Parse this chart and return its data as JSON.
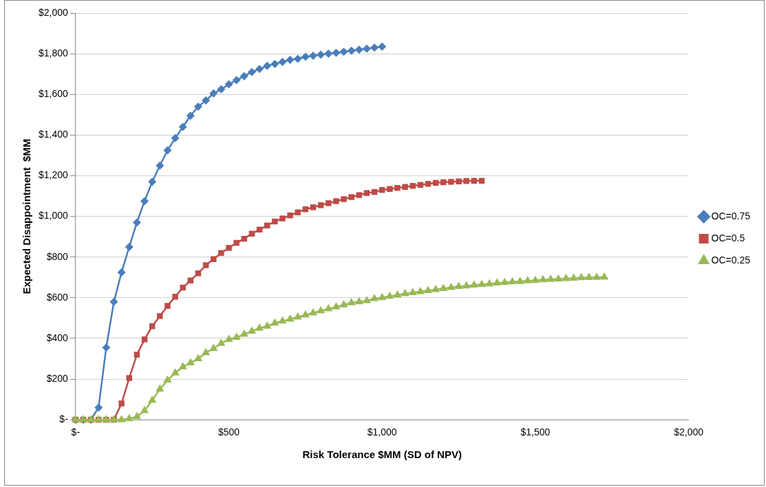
{
  "chart_data": {
    "type": "line",
    "xlabel": "Risk Tolerance $MM (SD of NPV)",
    "ylabel": "Expected Disappointment  $MM",
    "xlim": [
      0,
      2000
    ],
    "xticks": [
      {
        "value": 0,
        "label": "$-"
      },
      {
        "value": 500,
        "label": "$500"
      },
      {
        "value": 1000,
        "label": "$1,000"
      },
      {
        "value": 1500,
        "label": "$1,500"
      },
      {
        "value": 2000,
        "label": "$2,000"
      }
    ],
    "ylim": [
      0,
      2000
    ],
    "yticks": [
      {
        "value": 0,
        "label": "$-"
      },
      {
        "value": 200,
        "label": "$200"
      },
      {
        "value": 400,
        "label": "$400"
      },
      {
        "value": 600,
        "label": "$600"
      },
      {
        "value": 800,
        "label": "$800"
      },
      {
        "value": 1000,
        "label": "$1,000"
      },
      {
        "value": 1200,
        "label": "$1,200"
      },
      {
        "value": 1400,
        "label": "$1,400"
      },
      {
        "value": 1600,
        "label": "$1,600"
      },
      {
        "value": 1800,
        "label": "$1,800"
      },
      {
        "value": 2000,
        "label": "$2,000"
      }
    ],
    "grid": "y",
    "legend": "right",
    "line_style": "solid",
    "series": [
      {
        "name": "OC=0.75",
        "color": "#4a7ebb",
        "marker": "diamond",
        "x": [
          0,
          25,
          50,
          75,
          100,
          125,
          150,
          175,
          200,
          225,
          250,
          275,
          300,
          325,
          350,
          375,
          400,
          425,
          450,
          475,
          500,
          525,
          550,
          575,
          600,
          625,
          650,
          675,
          700,
          725,
          750,
          775,
          800,
          825,
          850,
          875,
          900,
          925,
          950,
          975,
          1000
        ],
        "values": [
          0,
          0,
          0,
          60,
          355,
          580,
          725,
          850,
          970,
          1075,
          1170,
          1250,
          1325,
          1385,
          1440,
          1495,
          1540,
          1570,
          1605,
          1625,
          1650,
          1670,
          1690,
          1710,
          1725,
          1740,
          1750,
          1760,
          1770,
          1775,
          1785,
          1790,
          1795,
          1800,
          1805,
          1810,
          1815,
          1820,
          1825,
          1830,
          1835
        ]
      },
      {
        "name": "OC=0.5",
        "color": "#be4b48",
        "marker": "square",
        "x": [
          0,
          25,
          50,
          75,
          100,
          125,
          150,
          175,
          200,
          225,
          250,
          275,
          300,
          325,
          350,
          375,
          400,
          425,
          450,
          475,
          500,
          525,
          550,
          575,
          600,
          625,
          650,
          675,
          700,
          725,
          750,
          775,
          800,
          825,
          850,
          875,
          900,
          925,
          950,
          975,
          1000,
          1025,
          1050,
          1075,
          1100,
          1125,
          1150,
          1175,
          1200,
          1225,
          1250,
          1275,
          1300,
          1325
        ],
        "values": [
          0,
          0,
          0,
          0,
          0,
          0,
          80,
          205,
          320,
          395,
          460,
          510,
          560,
          605,
          650,
          685,
          720,
          760,
          790,
          820,
          845,
          870,
          890,
          915,
          935,
          955,
          975,
          990,
          1005,
          1020,
          1035,
          1045,
          1055,
          1065,
          1075,
          1085,
          1095,
          1105,
          1115,
          1120,
          1130,
          1135,
          1140,
          1145,
          1150,
          1155,
          1160,
          1165,
          1168,
          1170,
          1172,
          1174,
          1175,
          1175
        ]
      },
      {
        "name": "OC=0.25",
        "color": "#98b954",
        "marker": "triangle",
        "x": [
          0,
          25,
          50,
          75,
          100,
          125,
          150,
          175,
          200,
          225,
          250,
          275,
          300,
          325,
          350,
          375,
          400,
          425,
          450,
          475,
          500,
          525,
          550,
          575,
          600,
          625,
          650,
          675,
          700,
          725,
          750,
          775,
          800,
          825,
          850,
          875,
          900,
          925,
          950,
          975,
          1000,
          1025,
          1050,
          1075,
          1100,
          1125,
          1150,
          1175,
          1200,
          1225,
          1250,
          1275,
          1300,
          1325,
          1350,
          1375,
          1400,
          1425,
          1450,
          1475,
          1500,
          1525,
          1550,
          1575,
          1600,
          1625,
          1650,
          1675,
          1700,
          1725
        ],
        "values": [
          0,
          0,
          0,
          0,
          0,
          0,
          0,
          5,
          15,
          45,
          95,
          150,
          195,
          230,
          260,
          280,
          300,
          330,
          350,
          375,
          395,
          405,
          420,
          435,
          450,
          460,
          475,
          485,
          495,
          505,
          515,
          525,
          535,
          545,
          555,
          565,
          575,
          580,
          585,
          595,
          600,
          607,
          613,
          620,
          625,
          630,
          635,
          640,
          645,
          650,
          655,
          658,
          662,
          665,
          668,
          672,
          675,
          678,
          680,
          683,
          685,
          688,
          690,
          692,
          694,
          696,
          698,
          699,
          700,
          701
        ]
      }
    ]
  }
}
